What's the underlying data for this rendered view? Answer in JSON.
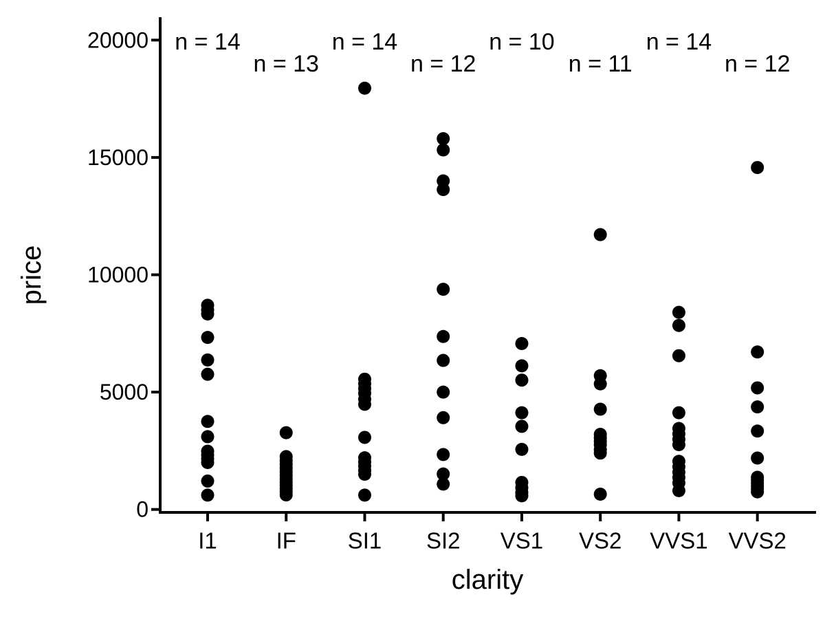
{
  "chart_data": {
    "type": "scatter",
    "variant": "strip-plot",
    "title": "",
    "xlabel": "clarity",
    "ylabel": "price",
    "categories": [
      "I1",
      "IF",
      "SI1",
      "SI2",
      "VS1",
      "VS2",
      "VVS1",
      "VVS2"
    ],
    "y_ticks": [
      0,
      5000,
      10000,
      15000,
      20000
    ],
    "ylim": [
      0,
      20500
    ],
    "grid": false,
    "legend_position": "none",
    "point_color": "#000000",
    "axis_color": "#000000",
    "background_color": "#FFFFFF",
    "series": [
      {
        "name": "I1",
        "n": 14,
        "annotation": "n = 14",
        "prices": [
          8700,
          8500,
          8330,
          7330,
          6370,
          5760,
          3750,
          3100,
          2480,
          2320,
          2160,
          2000,
          1210,
          610
        ]
      },
      {
        "name": "IF",
        "n": 13,
        "annotation": "n = 13",
        "prices": [
          3270,
          2250,
          2080,
          1920,
          1760,
          1600,
          1450,
          1300,
          1160,
          1020,
          890,
          760,
          620
        ]
      },
      {
        "name": "SI1",
        "n": 14,
        "annotation": "n = 14",
        "prices": [
          17950,
          5550,
          5350,
          5150,
          4950,
          4700,
          4480,
          3070,
          2200,
          2020,
          1840,
          1660,
          1500,
          610
        ]
      },
      {
        "name": "SI2",
        "n": 12,
        "annotation": "n = 12",
        "prices": [
          15800,
          15320,
          14000,
          13630,
          9380,
          7370,
          6350,
          5000,
          3910,
          2340,
          1510,
          1080
        ]
      },
      {
        "name": "VS1",
        "n": 10,
        "annotation": "n = 10",
        "prices": [
          7070,
          6120,
          5510,
          4120,
          3540,
          2560,
          1150,
          920,
          720,
          580
        ]
      },
      {
        "name": "VS2",
        "n": 11,
        "annotation": "n = 11",
        "prices": [
          11710,
          5700,
          5350,
          4270,
          3200,
          3050,
          2900,
          2750,
          2550,
          2400,
          650
        ]
      },
      {
        "name": "VVS1",
        "n": 14,
        "annotation": "n = 14",
        "prices": [
          8400,
          7840,
          6550,
          4120,
          3450,
          3220,
          2990,
          2760,
          2050,
          1820,
          1590,
          1360,
          1130,
          800
        ]
      },
      {
        "name": "VVS2",
        "n": 12,
        "annotation": "n = 12",
        "prices": [
          14570,
          6710,
          5180,
          4370,
          3340,
          2190,
          1370,
          1250,
          1120,
          990,
          870,
          750
        ]
      }
    ]
  }
}
